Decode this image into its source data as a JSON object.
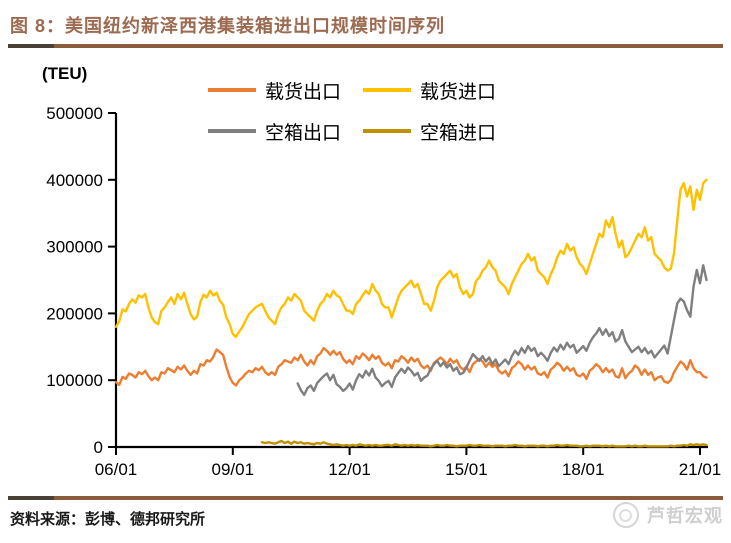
{
  "title": "图 8：美国纽约新泽西港集装箱进出口规模时间序列",
  "footer": {
    "source": "资料来源：彭博、德邦研究所",
    "watermark": "芦哲宏观"
  },
  "chart_data": {
    "type": "line",
    "title": "美国纽约新泽西港集装箱进出口规模时间序列",
    "ylabel": "(TEU)",
    "unit": "TEU",
    "ylim": [
      0,
      500000
    ],
    "y_ticks": [
      0,
      100000,
      200000,
      300000,
      400000,
      500000
    ],
    "x_tick_labels": [
      "06/01",
      "09/01",
      "12/01",
      "15/01",
      "18/01",
      "21/01"
    ],
    "x_tick_interval_months": 36,
    "x_start": "2006-01",
    "x_end": "2021-03",
    "grid": false,
    "legend_position": "top-center",
    "series": [
      {
        "name": "载货出口",
        "slug": "loaded-export",
        "color": "#ED7D31",
        "start": "2006-01",
        "start_month_index": 0,
        "values_thousand_teu": [
          97,
          93,
          105,
          102,
          110,
          108,
          104,
          112,
          109,
          114,
          106,
          100,
          104,
          100,
          112,
          110,
          118,
          115,
          112,
          120,
          116,
          122,
          114,
          108,
          114,
          110,
          124,
          122,
          130,
          128,
          135,
          146,
          142,
          138,
          120,
          105,
          96,
          92,
          100,
          104,
          110,
          114,
          112,
          118,
          115,
          120,
          112,
          108,
          112,
          108,
          120,
          124,
          130,
          128,
          126,
          134,
          130,
          138,
          128,
          122,
          130,
          124,
          136,
          140,
          148,
          144,
          138,
          144,
          138,
          142,
          132,
          126,
          130,
          124,
          136,
          132,
          140,
          136,
          130,
          138,
          132,
          136,
          126,
          122,
          126,
          118,
          130,
          128,
          136,
          132,
          126,
          134,
          128,
          132,
          122,
          118,
          122,
          114,
          126,
          130,
          134,
          130,
          124,
          132,
          126,
          130,
          120,
          116,
          120,
          112,
          124,
          128,
          132,
          128,
          120,
          126,
          120,
          124,
          114,
          110,
          114,
          106,
          118,
          122,
          128,
          124,
          116,
          122,
          116,
          120,
          110,
          108,
          112,
          104,
          116,
          120,
          126,
          122,
          114,
          120,
          114,
          118,
          108,
          106,
          110,
          102,
          114,
          118,
          124,
          120,
          112,
          118,
          112,
          116,
          106,
          104,
          118,
          103,
          110,
          114,
          122,
          118,
          108,
          116,
          108,
          112,
          100,
          104,
          106,
          98,
          96,
          100,
          112,
          120,
          128,
          124,
          116,
          130,
          118,
          112,
          112,
          106,
          104
        ]
      },
      {
        "name": "载货进口",
        "slug": "loaded-import",
        "color": "#FFC000",
        "start": "2006-01",
        "start_month_index": 0,
        "values_thousand_teu": [
          180,
          188,
          206,
          203,
          214,
          221,
          216,
          227,
          224,
          229,
          209,
          194,
          187,
          184,
          204,
          209,
          217,
          224,
          214,
          229,
          221,
          231,
          214,
          199,
          191,
          195,
          217,
          228,
          224,
          234,
          227,
          231,
          219,
          213,
          194,
          184,
          169,
          165,
          173,
          180,
          190,
          199,
          204,
          209,
          212,
          214,
          204,
          194,
          189,
          184,
          199,
          209,
          214,
          224,
          219,
          229,
          224,
          219,
          204,
          199,
          194,
          189,
          204,
          214,
          219,
          229,
          224,
          234,
          227,
          224,
          214,
          204,
          204,
          199,
          214,
          219,
          227,
          234,
          229,
          244,
          234,
          229,
          214,
          209,
          209,
          194,
          209,
          224,
          234,
          239,
          244,
          249,
          239,
          244,
          229,
          214,
          214,
          204,
          219,
          239,
          249,
          254,
          259,
          264,
          254,
          259,
          239,
          229,
          234,
          224,
          229,
          249,
          254,
          264,
          269,
          279,
          269,
          264,
          249,
          244,
          239,
          229,
          244,
          254,
          264,
          274,
          279,
          289,
          279,
          284,
          264,
          259,
          254,
          244,
          259,
          269,
          284,
          294,
          289,
          304,
          294,
          299,
          284,
          274,
          269,
          259,
          274,
          289,
          304,
          319,
          314,
          339,
          329,
          344,
          319,
          299,
          309,
          284,
          289,
          299,
          309,
          319,
          314,
          329,
          309,
          314,
          289,
          284,
          279,
          269,
          264,
          267,
          290,
          340,
          385,
          395,
          375,
          390,
          355,
          385,
          370,
          395,
          400
        ]
      },
      {
        "name": "空箱出口",
        "slug": "empty-export",
        "color": "#7F7F7F",
        "start": "2010-09",
        "start_month_index": 56,
        "values_thousand_teu": [
          95,
          85,
          78,
          88,
          92,
          84,
          96,
          101,
          106,
          110,
          100,
          108,
          94,
          90,
          84,
          88,
          95,
          86,
          100,
          109,
          104,
          114,
          107,
          117,
          104,
          99,
          91,
          96,
          99,
          90,
          104,
          111,
          117,
          111,
          119,
          114,
          107,
          111,
          99,
          104,
          107,
          117,
          124,
          129,
          121,
          127,
          119,
          124,
          114,
          119,
          109,
          111,
          119,
          129,
          139,
          134,
          129,
          136,
          128,
          134,
          124,
          131,
          121,
          126,
          131,
          124,
          136,
          144,
          138,
          148,
          141,
          151,
          144,
          148,
          136,
          141,
          136,
          129,
          141,
          149,
          143,
          153,
          146,
          156,
          149,
          153,
          141,
          146,
          151,
          144,
          156,
          164,
          170,
          178,
          168,
          176,
          166,
          172,
          158,
          162,
          175,
          158,
          150,
          142,
          146,
          150,
          142,
          148,
          140,
          144,
          134,
          140,
          146,
          152,
          140,
          165,
          190,
          215,
          222,
          218,
          205,
          195,
          240,
          265,
          245,
          272,
          250
        ]
      },
      {
        "name": "空箱进口",
        "slug": "empty-import",
        "color": "#BF9000",
        "start": "2009-10",
        "start_month_index": 45,
        "values_thousand_teu": [
          7,
          6,
          7,
          6,
          5,
          7,
          9,
          6,
          8,
          5,
          8,
          6,
          7,
          5,
          6,
          5,
          4,
          6,
          5,
          7,
          5,
          4,
          3,
          4,
          3,
          2,
          3,
          2,
          3,
          2,
          4,
          3,
          2,
          3,
          2,
          3,
          2,
          2,
          3,
          3,
          2,
          4,
          3,
          2,
          3,
          2,
          3,
          2,
          3,
          2,
          2,
          2,
          1,
          2,
          3,
          2,
          2,
          3,
          2,
          2,
          1,
          2,
          2,
          2,
          3,
          2,
          2,
          3,
          2,
          2,
          2,
          1,
          2,
          2,
          2,
          1,
          2,
          2,
          3,
          2,
          2,
          1,
          2,
          2,
          2,
          1,
          2,
          2,
          1,
          2,
          2,
          3,
          2,
          2,
          3,
          2,
          2,
          2,
          1,
          1,
          2,
          1,
          2,
          2,
          2,
          1,
          2,
          1,
          2,
          1,
          1,
          1,
          1,
          2,
          1,
          2,
          1,
          1,
          2,
          1,
          1,
          1,
          1,
          1,
          1,
          1,
          2,
          1,
          2,
          2,
          3,
          2,
          4,
          3,
          4,
          3,
          4,
          3
        ]
      }
    ]
  }
}
